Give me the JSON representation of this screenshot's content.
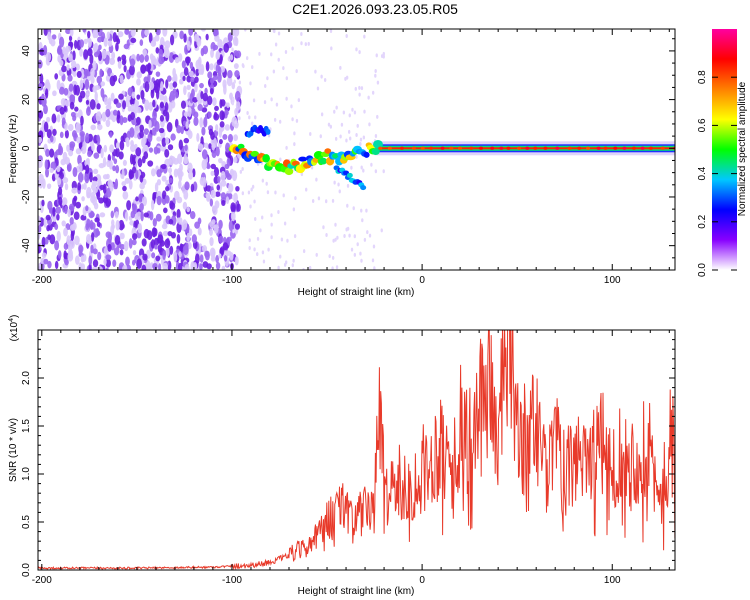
{
  "title": "C2E1.2026.093.23.05.R05",
  "chart_data": [
    {
      "type": "heatmap",
      "xlabel": "Height of straight line (km)",
      "ylabel": "Frequency (Hz)",
      "xlim": [
        -202,
        133
      ],
      "ylim": [
        -50,
        49
      ],
      "xticks": [
        -200,
        -100,
        0,
        100
      ],
      "yticks": [
        -40,
        -20,
        0,
        20,
        40
      ],
      "xtick_labels": [
        "-200",
        "-100",
        "0",
        "100"
      ],
      "ytick_labels": [
        "-40",
        "-20",
        "0",
        "20",
        "40"
      ],
      "signal_band_centerline": [
        [
          -100,
          0
        ],
        [
          -95,
          -1
        ],
        [
          -90,
          -3
        ],
        [
          -85,
          -5
        ],
        [
          -80,
          -6
        ],
        [
          -75,
          -7
        ],
        [
          -70,
          -8
        ],
        [
          -65,
          -7
        ],
        [
          -60,
          -5
        ],
        [
          -55,
          -4
        ],
        [
          -50,
          -3
        ],
        [
          -45,
          -4
        ],
        [
          -40,
          -3
        ],
        [
          -35,
          -2
        ],
        [
          -30,
          -1
        ],
        [
          -25,
          0
        ],
        [
          -20,
          0
        ],
        [
          -10,
          0
        ],
        [
          0,
          0
        ],
        [
          50,
          0
        ],
        [
          133,
          0
        ]
      ],
      "noise_region_x": [
        -202,
        -100
      ],
      "colorbar": {
        "label": "Normalized spectral amplitude",
        "range": [
          0,
          1
        ],
        "ticks": [
          0.0,
          0.2,
          0.4,
          0.6,
          0.8
        ],
        "tick_labels": [
          "0.0",
          "0.2",
          "0.4",
          "0.6",
          "0.8"
        ],
        "colors": [
          "#ffffff",
          "#8800ff",
          "#0000ff",
          "#00c8ff",
          "#00ff00",
          "#ffff00",
          "#ff8000",
          "#ff0000",
          "#ff00a0"
        ]
      }
    },
    {
      "type": "line",
      "xlabel": "Height of straight line (km)",
      "ylabel": "SNR (10 * v/v)",
      "scale_label": "(x10",
      "scale_exp": "4",
      "scale_close": ")",
      "xlim": [
        -202,
        133
      ],
      "ylim": [
        0,
        2.5
      ],
      "xticks": [
        -200,
        -100,
        0,
        100
      ],
      "yticks": [
        0.0,
        0.5,
        1.0,
        1.5,
        2.0
      ],
      "xtick_labels": [
        "-200",
        "-100",
        "0",
        "100"
      ],
      "ytick_labels": [
        "0.0",
        "0.5",
        "1.0",
        "1.5",
        "2.0"
      ],
      "color": "#e83a2a",
      "x": [
        -202,
        -150,
        -110,
        -100,
        -90,
        -80,
        -70,
        -60,
        -55,
        -50,
        -45,
        -40,
        -35,
        -30,
        -25,
        -22,
        -20,
        -15,
        -10,
        -5,
        0,
        5,
        10,
        15,
        20,
        25,
        30,
        35,
        40,
        45,
        50,
        55,
        60,
        65,
        70,
        75,
        80,
        85,
        90,
        95,
        100,
        105,
        110,
        115,
        120,
        125,
        130,
        133
      ],
      "y": [
        0.02,
        0.02,
        0.03,
        0.04,
        0.05,
        0.08,
        0.15,
        0.25,
        0.35,
        0.5,
        0.6,
        0.7,
        0.55,
        0.6,
        0.75,
        1.75,
        0.8,
        0.9,
        0.9,
        0.85,
        1.05,
        1.1,
        1.4,
        1.0,
        1.5,
        1.3,
        1.6,
        2.05,
        1.3,
        2.5,
        1.5,
        1.3,
        1.6,
        1.0,
        1.3,
        1.0,
        1.1,
        1.3,
        1.2,
        1.3,
        1.0,
        1.4,
        1.1,
        1.2,
        1.3,
        0.6,
        1.3,
        1.3
      ]
    }
  ]
}
